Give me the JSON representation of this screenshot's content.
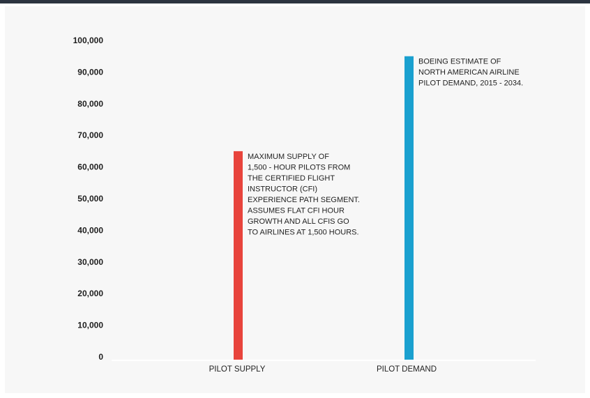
{
  "chart_data": {
    "type": "bar",
    "categories": [
      "PILOT SUPPLY",
      "PILOT DEMAND"
    ],
    "values": [
      65000,
      95000
    ],
    "bar_colors": [
      "#e8443c",
      "#1aa0cf"
    ],
    "ylim": [
      0,
      100000
    ],
    "yticks": [
      "0",
      "10,000",
      "20,000",
      "30,000",
      "40,000",
      "50,000",
      "60,000",
      "70,000",
      "80,000",
      "90,000",
      "100,000"
    ],
    "grid": false,
    "title": "",
    "xlabel": "",
    "ylabel": "",
    "annotations": [
      [
        "MAXIMUM SUPPLY OF",
        "1,500 - HOUR PILOTS FROM",
        "THE CERTIFIED FLIGHT",
        "INSTRUCTOR (CFI)",
        "EXPERIENCE PATH SEGMENT.",
        "ASSUMES FLAT CFI HOUR",
        "GROWTH AND ALL CFIS GO",
        "TO AIRLINES AT 1,500 HOURS."
      ],
      [
        "BOEING ESTIMATE OF",
        "NORTH AMERICAN AIRLINE",
        "PILOT DEMAND, 2015 - 2034."
      ]
    ]
  }
}
